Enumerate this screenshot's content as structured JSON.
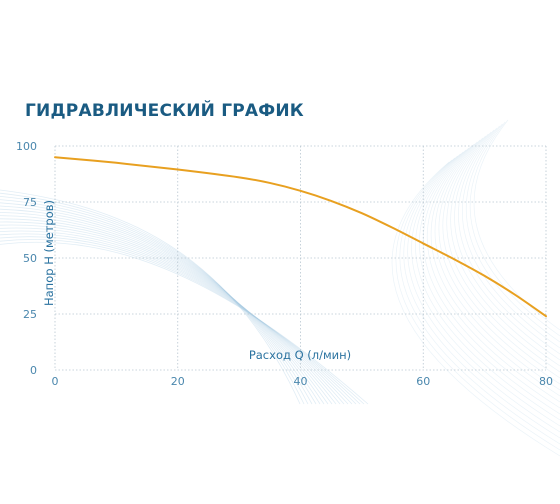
{
  "chart_data": {
    "type": "line",
    "title": "ГИДРАВЛИЧЕСКИЙ ГРАФИК",
    "xlabel": "Расход Q (л/мин)",
    "ylabel": "Напор H (метров)",
    "xlim": [
      0,
      80
    ],
    "ylim": [
      0,
      100
    ],
    "x_ticks": [
      "0",
      "20",
      "40",
      "60",
      "80"
    ],
    "y_ticks": [
      "0",
      "25",
      "50",
      "75",
      "100"
    ],
    "grid": true,
    "series": [
      {
        "color": "#e8a020",
        "x": [
          0,
          10,
          20,
          30,
          35,
          40,
          45,
          50,
          55,
          60,
          65,
          70,
          75,
          80
        ],
        "y": [
          95,
          92.5,
          89.5,
          86,
          83.5,
          80,
          75.5,
          70,
          63.5,
          56.5,
          49.5,
          42,
          33.5,
          24
        ]
      }
    ]
  }
}
